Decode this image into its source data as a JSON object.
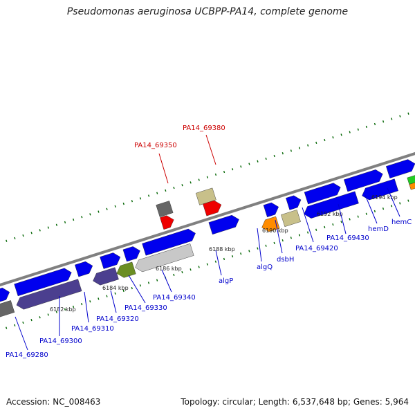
{
  "title": "Pseudomonas aeruginosa UCBPP-PA14, complete genome",
  "footer": {
    "accession": "Accession: NC_008463",
    "stats": "Topology: circular; Length: 6,537,648 bp; Genes: 5,964"
  },
  "colors": {
    "backbone": "#808080",
    "gene_forward": "#0000ee",
    "gene_reverse_purple": "#4b3f8f",
    "gene_grey": "#666666",
    "gene_light_grey": "#c8c8c8",
    "gene_olive": "#6b8e23",
    "gene_khaki": "#c8c08a",
    "gene_orange": "#ff8c00",
    "gene_red": "#ee0000",
    "gene_green": "#22cc22",
    "tick_green": "#006400",
    "label_blue": "#0000cc",
    "label_red": "#cc0000"
  },
  "scale_labels": [
    "6182 kbp",
    "6184 kbp",
    "6186 kbp",
    "6188 kbp",
    "6190 kbp",
    "6192 kbp",
    "6194 kbp"
  ],
  "gene_labels": [
    {
      "name": "PA14_69280",
      "color": "blue"
    },
    {
      "name": "PA14_69300",
      "color": "blue"
    },
    {
      "name": "PA14_69310",
      "color": "blue"
    },
    {
      "name": "PA14_69320",
      "color": "blue"
    },
    {
      "name": "PA14_69330",
      "color": "blue"
    },
    {
      "name": "PA14_69340",
      "color": "blue"
    },
    {
      "name": "algP",
      "color": "blue"
    },
    {
      "name": "algQ",
      "color": "blue"
    },
    {
      "name": "dsbH",
      "color": "blue"
    },
    {
      "name": "PA14_69420",
      "color": "blue"
    },
    {
      "name": "PA14_69430",
      "color": "blue"
    },
    {
      "name": "hemD",
      "color": "blue"
    },
    {
      "name": "hemC",
      "color": "blue"
    },
    {
      "name": "PA14_69350",
      "color": "red"
    },
    {
      "name": "PA14_69380",
      "color": "red"
    }
  ]
}
